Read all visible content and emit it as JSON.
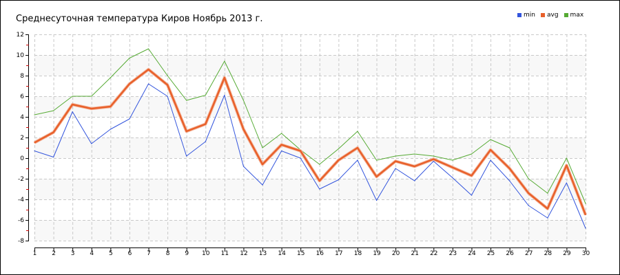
{
  "chart_data": {
    "type": "line",
    "title": "Среднесуточная температура Киров  Ноябрь 2013 г.",
    "x": [
      1,
      2,
      3,
      4,
      5,
      6,
      7,
      8,
      9,
      10,
      11,
      12,
      13,
      14,
      15,
      16,
      17,
      18,
      19,
      20,
      21,
      22,
      23,
      24,
      25,
      26,
      27,
      28,
      29,
      30
    ],
    "xlim": [
      1,
      30
    ],
    "ylim": [
      -8,
      12
    ],
    "yticks": [
      -8,
      -6,
      -4,
      -2,
      0,
      2,
      4,
      6,
      8,
      10,
      12
    ],
    "grid": true,
    "legend_position": "top-right",
    "series": [
      {
        "name": "min",
        "color": "#3355dd",
        "values": [
          0.7,
          0.1,
          4.5,
          1.4,
          2.8,
          3.8,
          7.2,
          6.0,
          0.2,
          1.6,
          6.1,
          -0.8,
          -2.6,
          0.7,
          0.0,
          -3.0,
          -2.1,
          -0.2,
          -4.1,
          -1.0,
          -2.2,
          -0.3,
          -1.9,
          -3.6,
          -0.2,
          -2.2,
          -4.6,
          -5.8,
          -2.4,
          -6.8
        ]
      },
      {
        "name": "avg",
        "color": "#e8602a",
        "values": [
          1.5,
          2.5,
          5.2,
          4.8,
          5.0,
          7.2,
          8.6,
          7.1,
          2.6,
          3.3,
          7.8,
          2.8,
          -0.6,
          1.3,
          0.7,
          -2.2,
          -0.2,
          1.0,
          -1.8,
          -0.3,
          -0.8,
          -0.1,
          -0.9,
          -1.7,
          0.8,
          -1.0,
          -3.4,
          -4.9,
          -0.7,
          -5.5
        ]
      },
      {
        "name": "max",
        "color": "#55aa33",
        "values": [
          4.2,
          4.6,
          6.0,
          6.0,
          7.8,
          9.7,
          10.6,
          8.0,
          5.6,
          6.1,
          9.4,
          5.6,
          1.0,
          2.4,
          0.8,
          -0.6,
          0.9,
          2.6,
          -0.2,
          0.2,
          0.4,
          0.2,
          -0.2,
          0.4,
          1.8,
          1.0,
          -2.0,
          -3.4,
          0.0,
          -4.4
        ]
      }
    ]
  }
}
